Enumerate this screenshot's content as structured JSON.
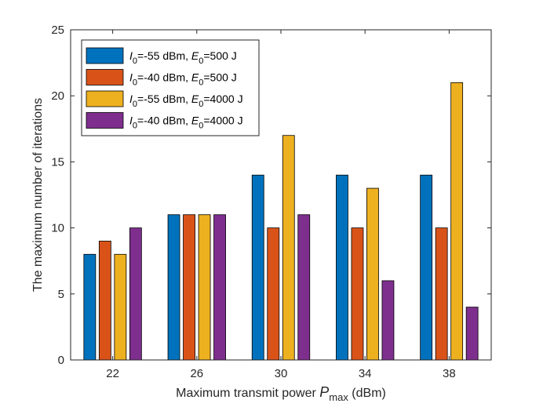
{
  "chart_data": {
    "type": "bar",
    "title": "",
    "categories": [
      "22",
      "26",
      "30",
      "34",
      "38"
    ],
    "xlabel": {
      "prefix": "Maximum transmit power ",
      "var": "P",
      "sub": "max",
      "suffix": " (dBm)"
    },
    "ylabel": "The maximum number of iterations",
    "ylim": [
      0,
      25
    ],
    "yticks": [
      0,
      5,
      10,
      15,
      20,
      25
    ],
    "grid": false,
    "legend_position": "top-left",
    "series": [
      {
        "name": "I0=-55 dBm, E0=500 J",
        "label": {
          "v1": "I",
          "s1": "0",
          "t1": "=-55 dBm, ",
          "v2": "E",
          "s2": "0",
          "t2": "=500 J"
        },
        "color": "#0072BD",
        "values": [
          8,
          11,
          14,
          14,
          14
        ]
      },
      {
        "name": "I0=-40 dBm, E0=500 J",
        "label": {
          "v1": "I",
          "s1": "0",
          "t1": "=-40 dBm, ",
          "v2": "E",
          "s2": "0",
          "t2": "=500 J"
        },
        "color": "#D95319",
        "values": [
          9,
          11,
          10,
          10,
          10
        ]
      },
      {
        "name": "I0=-55 dBm, E0=4000 J",
        "label": {
          "v1": "I",
          "s1": "0",
          "t1": "=-55 dBm, ",
          "v2": "E",
          "s2": "0",
          "t2": "=4000 J"
        },
        "color": "#EDB120",
        "values": [
          8,
          11,
          17,
          13,
          21
        ]
      },
      {
        "name": "I0=-40 dBm, E0=4000 J",
        "label": {
          "v1": "I",
          "s1": "0",
          "t1": "=-40 dBm, ",
          "v2": "E",
          "s2": "0",
          "t2": "=4000 J"
        },
        "color": "#7E2F8E",
        "values": [
          10,
          11,
          11,
          6,
          4
        ]
      }
    ]
  }
}
